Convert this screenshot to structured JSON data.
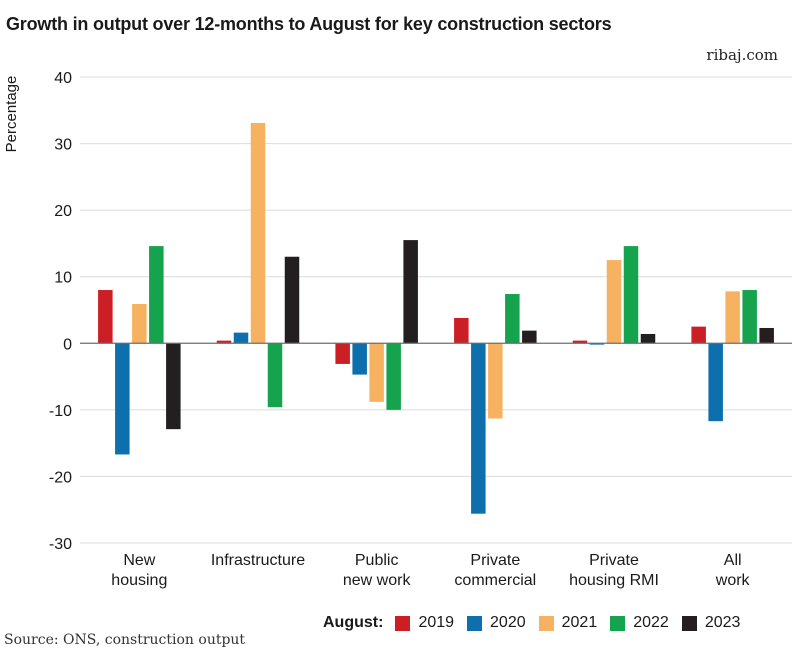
{
  "header": {
    "title": "Growth in output over 12-months to August for key construction sectors",
    "brand": "ribaj.com"
  },
  "footer": {
    "source": "Source: ONS, construction output"
  },
  "legend": {
    "label": "August:"
  },
  "colors": {
    "2019": "#cc1f25",
    "2020": "#0e6fad",
    "2021": "#f7b261",
    "2022": "#16a34e",
    "2023": "#231f20",
    "grid": "#dcdcdc",
    "zero_line": "#6e6e6e"
  },
  "chart_data": {
    "type": "bar",
    "title": "Growth in output over 12-months to August for key construction sectors",
    "ylabel": "Percentage",
    "xlabel": "",
    "ylim": [
      -30,
      40
    ],
    "yticks": [
      "40",
      "30",
      "20",
      "10",
      "0",
      "-10",
      "-20",
      "-30"
    ],
    "ytick_values": [
      40,
      30,
      20,
      10,
      0,
      -10,
      -20,
      -30
    ],
    "grid": true,
    "legend_position": "bottom-right",
    "categories": [
      [
        "New",
        "housing"
      ],
      [
        "Infrastructure"
      ],
      [
        "Public",
        "new work"
      ],
      [
        "Private",
        "commercial"
      ],
      [
        "Private",
        "housing RMI"
      ],
      [
        "All",
        "work"
      ]
    ],
    "series": [
      {
        "name": "2019",
        "values": [
          8.0,
          0.4,
          -3.1,
          3.8,
          0.4,
          2.5
        ]
      },
      {
        "name": "2020",
        "values": [
          -16.7,
          1.6,
          -4.7,
          -25.6,
          -0.2,
          -11.7
        ]
      },
      {
        "name": "2021",
        "values": [
          5.9,
          33.1,
          -8.8,
          -11.3,
          12.5,
          7.8
        ]
      },
      {
        "name": "2022",
        "values": [
          14.6,
          -9.6,
          -10.0,
          7.4,
          14.6,
          8.0
        ]
      },
      {
        "name": "2023",
        "values": [
          -12.9,
          13.0,
          15.5,
          1.9,
          1.4,
          2.3
        ]
      }
    ]
  }
}
